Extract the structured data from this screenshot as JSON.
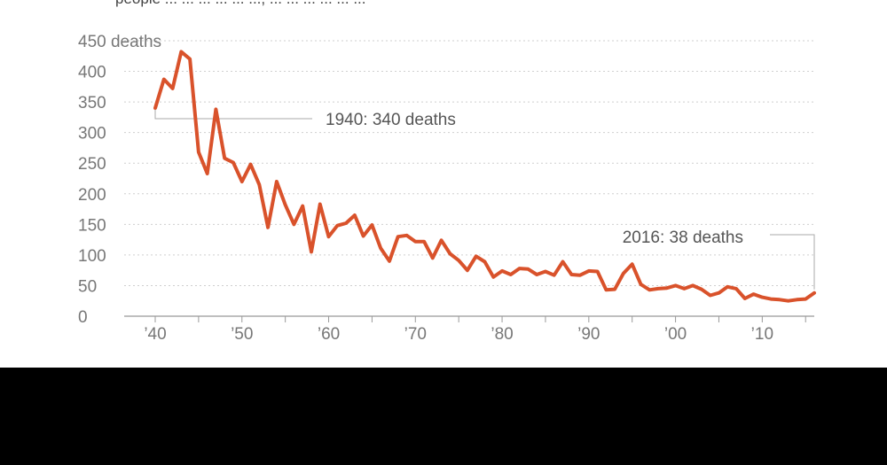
{
  "header": {
    "clipped_subtitle": "people ... ... ... ... ... ..., ... ... ... ... ... ..."
  },
  "colors": {
    "line": "#d9522b",
    "grid": "#cfcfcf",
    "axis": "#999999",
    "annotation_leader": "#aaaaaa",
    "bottom_band": "#000000"
  },
  "chart_data": {
    "type": "line",
    "title": "",
    "xlabel": "",
    "ylabel": "",
    "grid": true,
    "xlim": [
      1940,
      2016
    ],
    "ylim": [
      0,
      450
    ],
    "y_ticks": [
      {
        "value": 450,
        "label": "450 deaths"
      },
      {
        "value": 400,
        "label": "400"
      },
      {
        "value": 350,
        "label": "350"
      },
      {
        "value": 300,
        "label": "300"
      },
      {
        "value": 250,
        "label": "250"
      },
      {
        "value": 200,
        "label": "200"
      },
      {
        "value": 150,
        "label": "150"
      },
      {
        "value": 100,
        "label": "100"
      },
      {
        "value": 50,
        "label": "50"
      },
      {
        "value": 0,
        "label": "0"
      }
    ],
    "x_ticks": [
      {
        "value": 1940,
        "label": "’40"
      },
      {
        "value": 1950,
        "label": "’50"
      },
      {
        "value": 1960,
        "label": "’60"
      },
      {
        "value": 1970,
        "label": "’70"
      },
      {
        "value": 1980,
        "label": "’80"
      },
      {
        "value": 1990,
        "label": "’90"
      },
      {
        "value": 2000,
        "label": "’00"
      },
      {
        "value": 2010,
        "label": "’10"
      }
    ],
    "annotations": [
      {
        "x": 1940,
        "y": 340,
        "text": "1940: 340 deaths"
      },
      {
        "x": 2016,
        "y": 38,
        "text": "2016: 38 deaths"
      }
    ],
    "series": [
      {
        "x": [
          1940,
          1941,
          1942,
          1943,
          1944,
          1945,
          1946,
          1947,
          1948,
          1949,
          1950,
          1951,
          1952,
          1953,
          1954,
          1955,
          1956,
          1957,
          1958,
          1959,
          1960,
          1961,
          1962,
          1963,
          1964,
          1965,
          1966,
          1967,
          1968,
          1969,
          1970,
          1971,
          1972,
          1973,
          1974,
          1975,
          1976,
          1977,
          1978,
          1979,
          1980,
          1981,
          1982,
          1983,
          1984,
          1985,
          1986,
          1987,
          1988,
          1989,
          1990,
          1991,
          1992,
          1993,
          1994,
          1995,
          1996,
          1997,
          1998,
          1999,
          2000,
          2001,
          2002,
          2003,
          2004,
          2005,
          2006,
          2007,
          2008,
          2009,
          2010,
          2011,
          2012,
          2013,
          2014,
          2015,
          2016
        ],
        "y": [
          340,
          387,
          372,
          432,
          420,
          268,
          233,
          338,
          258,
          251,
          220,
          248,
          215,
          145,
          220,
          182,
          150,
          180,
          105,
          183,
          130,
          148,
          152,
          165,
          131,
          149,
          111,
          90,
          130,
          132,
          122,
          122,
          95,
          124,
          102,
          91,
          75,
          98,
          89,
          64,
          74,
          68,
          78,
          77,
          68,
          73,
          67,
          89,
          68,
          67,
          74,
          73,
          43,
          44,
          70,
          85,
          52,
          43,
          45,
          46,
          50,
          45,
          50,
          44,
          34,
          38,
          48,
          45,
          29,
          36,
          31,
          28,
          27,
          25,
          27,
          28,
          38
        ]
      }
    ]
  }
}
